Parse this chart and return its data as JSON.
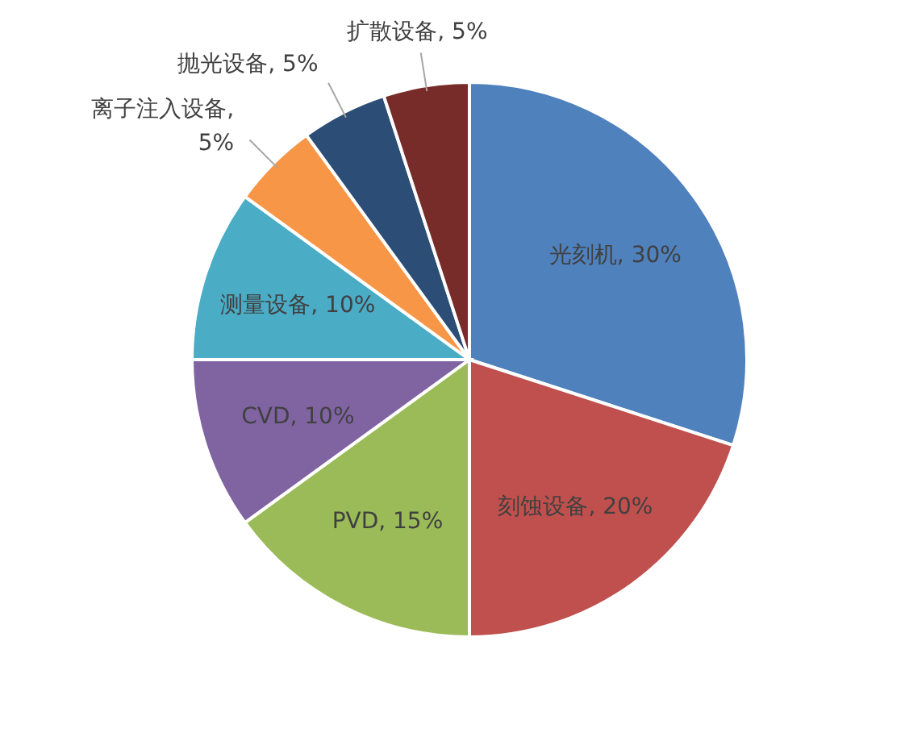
{
  "chart_data": {
    "type": "pie",
    "categories": [
      "光刻机",
      "刻蚀设备",
      "PVD",
      "CVD",
      "测量设备",
      "离子注入设备",
      "抛光设备",
      "扩散设备"
    ],
    "values": [
      30,
      20,
      15,
      10,
      10,
      5,
      5,
      5
    ],
    "colors": [
      "#4f81bd",
      "#c0504d",
      "#9bbb59",
      "#8064a2",
      "#4bacc6",
      "#f79646",
      "#2c4d75",
      "#772c2a"
    ],
    "value_labels": [
      ", 30%",
      ", 20%",
      ", 15%",
      ", 10%",
      ", 10%",
      ",\n5%",
      ", 5%",
      ", 5%"
    ],
    "legend": false
  }
}
